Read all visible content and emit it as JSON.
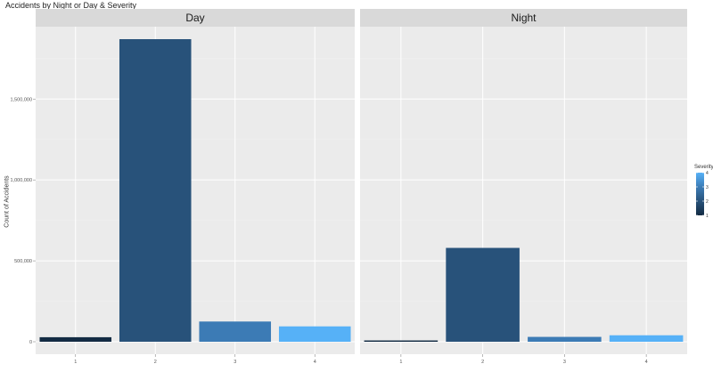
{
  "chart_data": {
    "type": "bar",
    "title": "Accidents by Night or Day & Severity",
    "ylabel": "Count of Accidents",
    "xlabel": "",
    "categories": [
      "1",
      "2",
      "3",
      "4"
    ],
    "ylim": [
      0,
      1950000
    ],
    "yticks": [
      0,
      500000,
      1000000,
      1500000
    ],
    "ytick_labels": [
      "0",
      "500,000",
      "1,000,000",
      "1,500,000"
    ],
    "legend": {
      "title": "Severity",
      "placement": "right",
      "ticks": [
        "1",
        "2",
        "3",
        "4"
      ]
    },
    "panels": [
      {
        "label": "Day",
        "values": [
          28000,
          1870000,
          125000,
          95000
        ]
      },
      {
        "label": "Night",
        "values": [
          8000,
          580000,
          30000,
          40000
        ]
      }
    ],
    "colors": {
      "1": "#132B43",
      "2": "#28527A",
      "3": "#3C7BB5",
      "4": "#56B1F7"
    },
    "grid": true
  }
}
